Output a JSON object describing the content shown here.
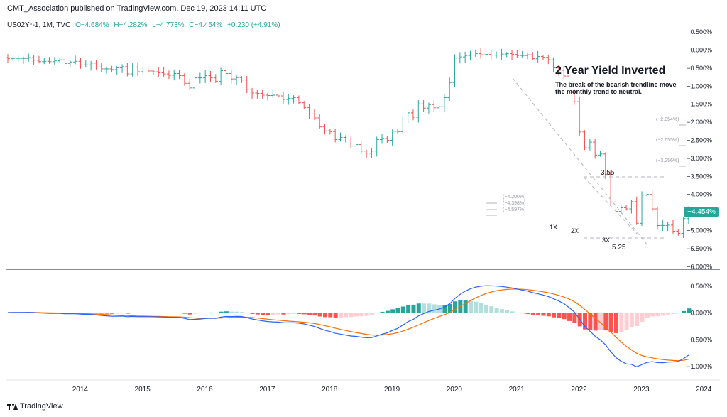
{
  "header": {
    "published": "CMT_Association published on TradingView.com, Dec 19, 2023 14:11 UTC"
  },
  "legend": {
    "symbol": "US02Y*-1, 1M, TVC",
    "open": "O−4.684%",
    "high": "H−4.282%",
    "low": "L−4.773%",
    "close": "C−4.454%",
    "change": "+0.230 (+4.91%)"
  },
  "annotation": {
    "title": "2 Year Yield Inverted",
    "line1": "The break of the bearish trendline move",
    "line2": "the monthly trend to neutral."
  },
  "markers": {
    "m1x": "1X",
    "m2x": "2X",
    "m3x": "3X",
    "level_high": "3.55",
    "level_low": "5.25"
  },
  "fib_labels_left": [
    "(−4.200%)",
    "(−4.398%)",
    "(−4.597%)"
  ],
  "fib_labels_right": [
    "(−2.054%)",
    "(−2.655%)",
    "(−3.256%)"
  ],
  "price_badge": "−4.454%",
  "footer": {
    "brand": "TradingView"
  },
  "colors": {
    "up": "#26a69a",
    "down": "#ef5350",
    "macd_line": "#2962ff",
    "signal_line": "#ff6d00",
    "hist_up_strong": "#26a69a",
    "hist_up_weak": "#b2dfdb",
    "hist_down_strong": "#ff5252",
    "hist_down_weak": "#ffcdd2"
  },
  "chart_data": [
    {
      "type": "candlestick",
      "title": "",
      "x_ticks": [
        "2014",
        "2015",
        "2016",
        "2017",
        "2018",
        "2019",
        "2020",
        "2021",
        "2022",
        "2023",
        "2024"
      ],
      "y_ticks": [
        "0.500%",
        "0.000%",
        "−0.500%",
        "−1.000%",
        "−1.500%",
        "−2.000%",
        "−2.500%",
        "−3.000%",
        "−3.500%",
        "−4.000%",
        "−4.500%",
        "−5.000%",
        "−5.500%",
        "−6.000%"
      ],
      "ylim": [
        -6.0,
        0.5
      ],
      "start": "2013-01",
      "close_series": [
        -0.25,
        -0.24,
        -0.24,
        -0.24,
        -0.22,
        -0.29,
        -0.33,
        -0.32,
        -0.33,
        -0.31,
        -0.28,
        -0.38,
        -0.34,
        -0.32,
        -0.42,
        -0.42,
        -0.37,
        -0.48,
        -0.53,
        -0.53,
        -0.55,
        -0.5,
        -0.47,
        -0.67,
        -0.48,
        -0.61,
        -0.56,
        -0.59,
        -0.61,
        -0.64,
        -0.67,
        -0.71,
        -0.66,
        -0.72,
        -0.93,
        -1.06,
        -0.78,
        -0.78,
        -0.72,
        -0.78,
        -0.88,
        -0.58,
        -0.66,
        -0.81,
        -0.77,
        -0.84,
        -1.11,
        -1.2,
        -1.21,
        -1.26,
        -1.27,
        -1.26,
        -1.28,
        -1.38,
        -1.35,
        -1.33,
        -1.47,
        -1.6,
        -1.78,
        -1.89,
        -2.14,
        -2.25,
        -2.27,
        -2.49,
        -2.43,
        -2.53,
        -2.67,
        -2.63,
        -2.81,
        -2.87,
        -2.81,
        -2.49,
        -2.46,
        -2.51,
        -2.26,
        -2.27,
        -1.92,
        -1.75,
        -1.87,
        -1.5,
        -1.62,
        -1.52,
        -1.61,
        -1.58,
        -1.33,
        -0.91,
        -0.23,
        -0.2,
        -0.16,
        -0.15,
        -0.11,
        -0.14,
        -0.13,
        -0.15,
        -0.15,
        -0.12,
        -0.11,
        -0.13,
        -0.16,
        -0.16,
        -0.14,
        -0.25,
        -0.19,
        -0.21,
        -0.28,
        -0.5,
        -0.57,
        -0.73,
        -1.18,
        -1.44,
        -2.28,
        -2.72,
        -2.56,
        -2.92,
        -2.89,
        -3.45,
        -4.22,
        -4.48,
        -4.38,
        -4.41,
        -4.21,
        -4.81,
        -4.03,
        -4.01,
        -4.41,
        -4.87,
        -4.87,
        -4.86,
        -5.03,
        -5.09,
        -4.68,
        -4.45
      ],
      "macd": {
        "y_ticks": [
          "0.500%",
          "0.000%",
          "−0.500%",
          "−1.000%"
        ],
        "ylim": [
          -1.15,
          0.6
        ]
      }
    }
  ]
}
